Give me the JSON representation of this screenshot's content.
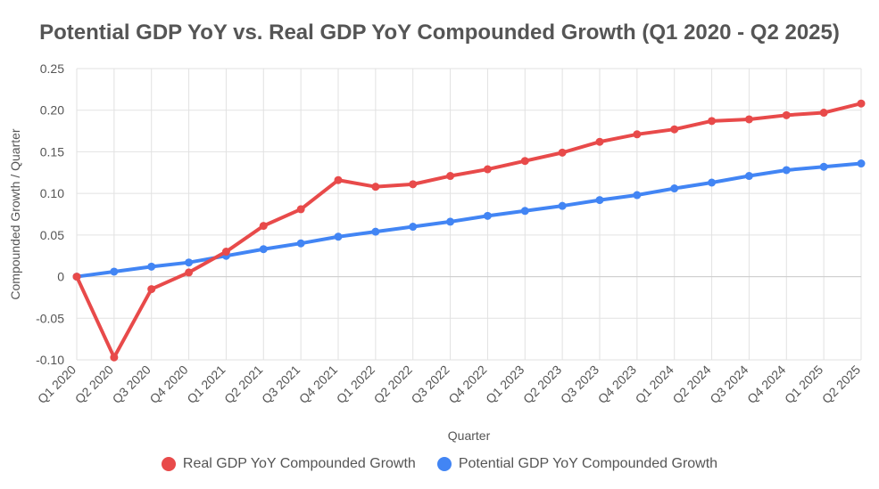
{
  "chart_data": {
    "type": "line",
    "title": "Potential GDP YoY vs. Real GDP YoY Compounded Growth (Q1 2020 - Q2 2025)",
    "xlabel": "Quarter",
    "ylabel": "Compounded Growth / Quarter",
    "ylim": [
      -0.1,
      0.25
    ],
    "yticks": [
      -0.1,
      -0.05,
      0,
      0.05,
      0.1,
      0.15,
      0.2,
      0.25
    ],
    "ytick_labels": [
      "-0.10",
      "-0.05",
      "0",
      "0.05",
      "0.10",
      "0.15",
      "0.20",
      "0.25"
    ],
    "grid": true,
    "legend_position": "bottom",
    "categories": [
      "Q1 2020",
      "Q2 2020",
      "Q3 2020",
      "Q4 2020",
      "Q1 2021",
      "Q2 2021",
      "Q3 2021",
      "Q4 2021",
      "Q1 2022",
      "Q2 2022",
      "Q3 2022",
      "Q4 2022",
      "Q1 2023",
      "Q2 2023",
      "Q3 2023",
      "Q4 2023",
      "Q1 2024",
      "Q2 2024",
      "Q3 2024",
      "Q4 2024",
      "Q1 2025",
      "Q2 2025"
    ],
    "series": [
      {
        "name": "Real GDP YoY Compounded Growth",
        "color": "#e84a4a",
        "values": [
          0.0,
          -0.097,
          -0.015,
          0.005,
          0.03,
          0.061,
          0.081,
          0.116,
          0.108,
          0.111,
          0.121,
          0.129,
          0.139,
          0.149,
          0.162,
          0.171,
          0.177,
          0.187,
          0.189,
          0.194,
          0.197,
          0.208
        ]
      },
      {
        "name": "Potential GDP YoY Compounded Growth",
        "color": "#4285f4",
        "values": [
          0.0,
          0.006,
          0.012,
          0.017,
          0.025,
          0.033,
          0.04,
          0.048,
          0.054,
          0.06,
          0.066,
          0.073,
          0.079,
          0.085,
          0.092,
          0.098,
          0.106,
          0.113,
          0.121,
          0.128,
          0.132,
          0.136
        ]
      }
    ]
  }
}
